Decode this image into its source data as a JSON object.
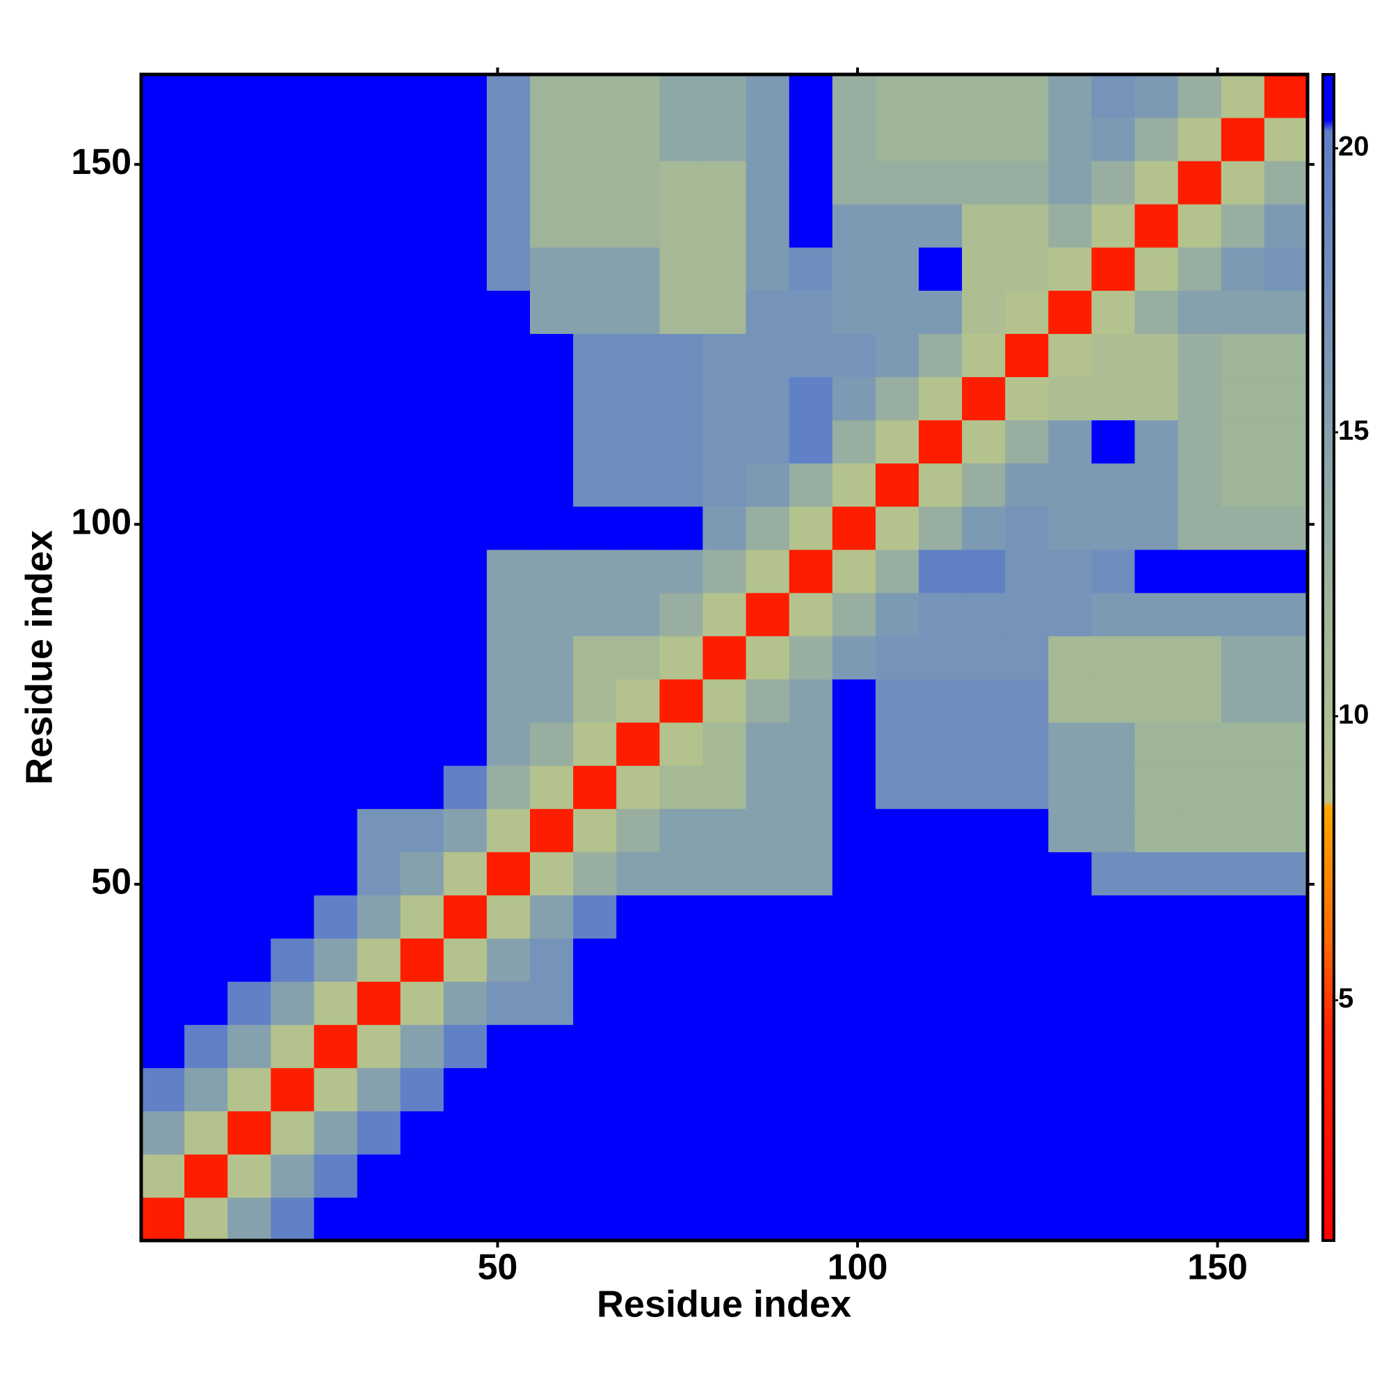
{
  "chart_data": {
    "type": "heatmap",
    "xlabel": "Residue index",
    "ylabel": "Residue index",
    "x": [
      3.5,
      9.5,
      15.5,
      21.5,
      27.5,
      33.5,
      39.5,
      45.5,
      51.5,
      57.5,
      63.5,
      69.5,
      75.5,
      81.5,
      87.5,
      93.5,
      99.5,
      105.5,
      111.5,
      117.5,
      123.5,
      129.5,
      135.5,
      141.5,
      147.5,
      153.5,
      159.5
    ],
    "y": [
      3.5,
      9.5,
      15.5,
      21.5,
      27.5,
      33.5,
      39.5,
      45.5,
      51.5,
      57.5,
      63.5,
      69.5,
      75.5,
      81.5,
      87.5,
      93.5,
      99.5,
      105.5,
      111.5,
      117.5,
      123.5,
      129.5,
      135.5,
      141.5,
      147.5,
      153.5,
      159.5
    ],
    "z": [
      [
        4,
        9,
        15,
        20,
        21,
        21,
        21,
        21,
        21,
        21,
        21,
        21,
        21,
        21,
        21,
        21,
        21,
        21,
        21,
        21,
        21,
        21,
        21,
        21,
        21,
        21,
        21
      ],
      [
        9,
        4,
        9,
        15,
        20,
        21,
        21,
        21,
        21,
        21,
        21,
        21,
        21,
        21,
        21,
        21,
        21,
        21,
        21,
        21,
        21,
        21,
        21,
        21,
        21,
        21,
        21
      ],
      [
        15,
        9,
        4,
        9,
        15,
        20,
        21,
        21,
        21,
        21,
        21,
        21,
        21,
        21,
        21,
        21,
        21,
        21,
        21,
        21,
        21,
        21,
        21,
        21,
        21,
        21,
        21
      ],
      [
        20,
        15,
        9,
        4,
        9,
        15,
        20,
        21,
        21,
        21,
        21,
        21,
        21,
        21,
        21,
        21,
        21,
        21,
        21,
        21,
        21,
        21,
        21,
        21,
        21,
        21,
        21
      ],
      [
        21,
        20,
        15,
        9,
        4,
        9,
        15,
        20,
        21,
        21,
        21,
        21,
        21,
        21,
        21,
        21,
        21,
        21,
        21,
        21,
        21,
        21,
        21,
        21,
        21,
        21,
        21
      ],
      [
        21,
        21,
        20,
        15,
        9,
        4,
        9,
        15,
        17,
        17,
        21,
        21,
        21,
        21,
        21,
        21,
        21,
        21,
        21,
        21,
        21,
        21,
        21,
        21,
        21,
        21,
        21
      ],
      [
        21,
        21,
        21,
        20,
        15,
        9,
        4,
        9,
        15,
        17,
        21,
        21,
        21,
        21,
        21,
        21,
        21,
        21,
        21,
        21,
        21,
        21,
        21,
        21,
        21,
        21,
        21
      ],
      [
        21,
        21,
        21,
        21,
        20,
        15,
        9,
        4,
        9,
        15,
        20,
        21,
        21,
        21,
        21,
        21,
        21,
        21,
        21,
        21,
        21,
        21,
        21,
        21,
        21,
        21,
        21
      ],
      [
        21,
        21,
        21,
        21,
        21,
        17,
        15,
        9,
        4,
        9,
        13,
        15,
        15,
        15,
        15,
        15,
        21,
        21,
        21,
        21,
        21,
        21,
        18,
        18,
        18,
        18,
        18
      ],
      [
        21,
        21,
        21,
        21,
        21,
        17,
        17,
        15,
        9,
        4,
        9,
        13,
        15,
        15,
        15,
        15,
        21,
        21,
        21,
        21,
        21,
        15,
        15,
        12,
        12,
        12,
        12
      ],
      [
        21,
        21,
        21,
        21,
        21,
        21,
        21,
        20,
        13,
        9,
        4,
        9,
        11,
        11,
        15,
        15,
        21,
        18,
        18,
        18,
        18,
        15,
        15,
        12,
        12,
        12,
        12
      ],
      [
        21,
        21,
        21,
        21,
        21,
        21,
        21,
        21,
        15,
        13,
        9,
        4,
        9,
        11,
        15,
        15,
        21,
        18,
        18,
        18,
        18,
        15,
        15,
        12,
        12,
        12,
        12
      ],
      [
        21,
        21,
        21,
        21,
        21,
        21,
        21,
        21,
        15,
        15,
        11,
        9,
        4,
        9,
        13,
        15,
        21,
        18,
        18,
        18,
        18,
        11,
        11,
        11,
        11,
        14,
        14
      ],
      [
        21,
        21,
        21,
        21,
        21,
        21,
        21,
        21,
        15,
        15,
        11,
        11,
        9,
        4,
        9,
        13,
        16,
        17,
        17,
        17,
        17,
        11,
        11,
        11,
        11,
        14,
        14
      ],
      [
        21,
        21,
        21,
        21,
        21,
        21,
        21,
        21,
        15,
        15,
        15,
        15,
        13,
        9,
        4,
        9,
        13,
        16,
        17,
        17,
        17,
        17,
        16,
        16,
        16,
        16,
        16
      ],
      [
        21,
        21,
        21,
        21,
        21,
        21,
        21,
        21,
        15,
        15,
        15,
        15,
        15,
        13,
        9,
        4,
        9,
        13,
        20,
        20,
        17,
        17,
        18,
        21,
        21,
        21,
        21
      ],
      [
        21,
        21,
        21,
        21,
        21,
        21,
        21,
        21,
        21,
        21,
        21,
        21,
        21,
        16,
        13,
        9,
        4,
        9,
        13,
        16,
        17,
        16,
        16,
        16,
        13,
        13,
        13
      ],
      [
        21,
        21,
        21,
        21,
        21,
        21,
        21,
        21,
        21,
        21,
        18,
        18,
        18,
        17,
        16,
        13,
        9,
        4,
        9,
        13,
        16,
        16,
        16,
        16,
        13,
        12,
        12
      ],
      [
        21,
        21,
        21,
        21,
        21,
        21,
        21,
        21,
        21,
        21,
        18,
        18,
        18,
        17,
        17,
        20,
        13,
        9,
        4,
        9,
        13,
        16,
        21,
        16,
        13,
        12,
        12
      ],
      [
        21,
        21,
        21,
        21,
        21,
        21,
        21,
        21,
        21,
        21,
        18,
        18,
        18,
        17,
        17,
        20,
        16,
        13,
        9,
        4,
        9,
        10,
        10,
        10,
        13,
        12,
        12
      ],
      [
        21,
        21,
        21,
        21,
        21,
        21,
        21,
        21,
        21,
        21,
        18,
        18,
        18,
        17,
        17,
        17,
        17,
        16,
        13,
        9,
        4,
        9,
        10,
        10,
        13,
        12,
        12
      ],
      [
        21,
        21,
        21,
        21,
        21,
        21,
        21,
        21,
        21,
        15,
        15,
        15,
        11,
        11,
        17,
        17,
        16,
        16,
        16,
        10,
        9,
        4,
        9,
        13,
        15,
        15,
        15
      ],
      [
        21,
        21,
        21,
        21,
        21,
        21,
        21,
        21,
        18,
        15,
        15,
        15,
        11,
        11,
        16,
        18,
        16,
        16,
        21,
        10,
        10,
        9,
        4,
        9,
        13,
        16,
        17
      ],
      [
        21,
        21,
        21,
        21,
        21,
        21,
        21,
        21,
        18,
        12,
        12,
        12,
        11,
        11,
        16,
        21,
        16,
        16,
        16,
        10,
        10,
        13,
        9,
        4,
        9,
        13,
        16
      ],
      [
        21,
        21,
        21,
        21,
        21,
        21,
        21,
        21,
        18,
        12,
        12,
        12,
        11,
        11,
        16,
        21,
        13,
        13,
        13,
        13,
        13,
        15,
        13,
        9,
        4,
        9,
        13
      ],
      [
        21,
        21,
        21,
        21,
        21,
        21,
        21,
        21,
        18,
        12,
        12,
        12,
        14,
        14,
        16,
        21,
        13,
        12,
        12,
        12,
        12,
        15,
        16,
        13,
        9,
        4,
        9
      ],
      [
        21,
        21,
        21,
        21,
        21,
        21,
        21,
        21,
        18,
        12,
        12,
        12,
        14,
        14,
        16,
        21,
        13,
        12,
        12,
        12,
        12,
        15,
        17,
        16,
        13,
        9,
        4
      ]
    ],
    "xlim": [
      0.5,
      162.5
    ],
    "ylim": [
      0.5,
      162.5
    ],
    "xticks": [
      50,
      100,
      150
    ],
    "yticks": [
      50,
      100,
      150
    ],
    "zlim": [
      0.77,
      21.3
    ],
    "zticks": [
      5,
      10,
      15,
      20
    ],
    "colorscale": [
      [
        0.77,
        "#ff0000"
      ],
      [
        4.5,
        "#ff2200"
      ],
      [
        6,
        "#ff6600"
      ],
      [
        8.4,
        "#ffa500"
      ],
      [
        8.5,
        "#b8c48c"
      ],
      [
        12,
        "#9fb59a"
      ],
      [
        16,
        "#7d9ab4"
      ],
      [
        20.3,
        "#5f7fc8"
      ],
      [
        20.5,
        "#0000ff"
      ],
      [
        21.3,
        "#0000ff"
      ]
    ]
  }
}
